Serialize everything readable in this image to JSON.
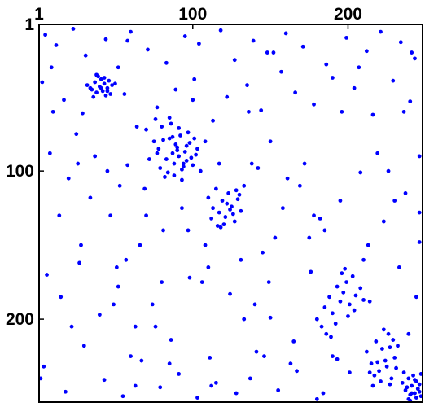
{
  "chart_data": {
    "type": "scatter",
    "color": "#0000ff",
    "xlim": [
      1,
      248
    ],
    "ylim": [
      1,
      256
    ],
    "y_reversed": true,
    "x_axis_position": "top",
    "xticks": [
      1,
      100,
      200
    ],
    "yticks": [
      1,
      100,
      200
    ],
    "x": [
      5,
      12,
      23,
      31,
      44,
      52,
      60,
      71,
      83,
      95,
      104,
      118,
      127,
      139,
      148,
      160,
      171,
      186,
      199,
      212,
      221,
      234,
      243,
      3,
      17,
      29,
      38,
      56,
      64,
      77,
      89,
      101,
      113,
      122,
      135,
      144,
      157,
      166,
      178,
      190,
      204,
      216,
      229,
      240,
      8,
      20,
      34,
      47,
      58,
      69,
      81,
      93,
      108,
      116,
      131,
      142,
      153,
      169,
      182,
      195,
      208,
      223,
      237,
      246,
      6,
      15,
      27,
      40,
      52,
      63,
      74,
      86,
      98,
      111,
      124,
      137,
      150,
      163,
      176,
      189,
      201,
      214,
      227,
      239,
      4,
      18,
      30,
      43,
      55,
      67,
      79,
      91,
      103,
      115,
      128,
      141,
      155,
      167,
      180,
      193,
      32,
      35,
      37,
      38,
      40,
      41,
      42,
      43,
      44,
      45,
      46,
      47,
      48,
      36,
      39,
      41,
      43,
      45,
      34,
      50,
      70,
      75,
      78,
      80,
      83,
      85,
      87,
      88,
      90,
      91,
      92,
      93,
      95,
      96,
      98,
      100,
      102,
      105,
      82,
      86,
      72,
      77,
      84,
      89,
      94,
      97,
      99,
      103,
      81,
      88,
      91,
      94,
      85,
      79,
      93,
      76,
      101,
      87,
      96,
      90,
      110,
      113,
      115,
      117,
      119,
      121,
      123,
      125,
      127,
      129,
      131,
      133,
      118,
      122,
      126,
      130,
      112,
      128,
      124,
      120,
      180,
      185,
      188,
      190,
      193,
      195,
      197,
      199,
      201,
      203,
      205,
      208,
      192,
      196,
      186,
      200,
      210,
      183,
      198,
      204,
      212,
      215,
      218,
      220,
      222,
      224,
      226,
      228,
      230,
      232,
      217,
      221,
      225,
      229,
      214,
      227,
      219,
      231,
      223,
      216,
      235,
      237,
      239,
      240,
      241,
      242,
      243,
      244,
      245,
      246,
      247,
      236,
      238,
      244,
      240,
      246,
      243,
      239,
      247,
      241,
      10,
      25,
      37,
      53,
      66,
      80,
      97,
      110,
      136,
      150,
      172,
      185,
      233,
      246,
      14,
      60,
      140,
      158,
      175,
      210,
      22,
      49,
      63,
      85,
      108,
      133,
      146,
      161,
      178,
      207,
      230,
      244,
      2,
      28,
      57,
      117,
      152,
      196,
      219,
      236,
      9,
      45,
      58,
      76,
      100,
      112,
      138,
      149,
      165,
      184,
      226,
      241,
      26,
      51,
      70,
      106,
      145,
      190,
      213,
      246
    ],
    "values": [
      8,
      15,
      4,
      22,
      11,
      30,
      6,
      18,
      27,
      9,
      14,
      5,
      25,
      12,
      20,
      7,
      16,
      28,
      10,
      19,
      6,
      13,
      24,
      40,
      52,
      61,
      35,
      48,
      70,
      57,
      45,
      38,
      66,
      50,
      42,
      59,
      33,
      47,
      55,
      37,
      44,
      62,
      39,
      53,
      88,
      105,
      118,
      130,
      96,
      112,
      140,
      125,
      150,
      137,
      160,
      98,
      145,
      110,
      132,
      120,
      101,
      134,
      115,
      148,
      170,
      185,
      162,
      197,
      178,
      205,
      190,
      214,
      172,
      226,
      183,
      240,
      199,
      230,
      168,
      212,
      236,
      188,
      244,
      210,
      232,
      249,
      218,
      241,
      252,
      228,
      246,
      237,
      253,
      243,
      250,
      222,
      248,
      235,
      254,
      227,
      42,
      45,
      40,
      47,
      43,
      38,
      46,
      41,
      49,
      44,
      39,
      48,
      42,
      50,
      36,
      44,
      37,
      46,
      44,
      41,
      72,
      80,
      85,
      70,
      92,
      78,
      88,
      95,
      84,
      90,
      76,
      99,
      87,
      93,
      81,
      96,
      89,
      100,
      104,
      68,
      92,
      88,
      101,
      82,
      95,
      74,
      91,
      85,
      79,
      103,
      71,
      97,
      64,
      98,
      106,
      65,
      78,
      77,
      83,
      86,
      118,
      125,
      112,
      128,
      120,
      131,
      115,
      124,
      134,
      119,
      127,
      110,
      138,
      122,
      129,
      116,
      132,
      113,
      126,
      136,
      200,
      192,
      185,
      196,
      178,
      188,
      182,
      175,
      190,
      171,
      184,
      179,
      203,
      169,
      210,
      198,
      187,
      205,
      166,
      194,
      222,
      230,
      215,
      235,
      220,
      228,
      210,
      240,
      226,
      218,
      238,
      242,
      232,
      214,
      236,
      219,
      229,
      233,
      207,
      245,
      243,
      248,
      240,
      251,
      245,
      238,
      250,
      242,
      247,
      244,
      252,
      236,
      246,
      253,
      255,
      249,
      241,
      254,
      237,
      250,
      60,
      75,
      90,
      110,
      150,
      175,
      140,
      165,
      60,
      80,
      95,
      140,
      165,
      90,
      130,
      225,
      190,
      125,
      145,
      160,
      205,
      190,
      245,
      230,
      80,
      200,
      225,
      105,
      130,
      30,
      120,
      185,
      240,
      150,
      160,
      95,
      20,
      60,
      88,
      60,
      30,
      100,
      12,
      205,
      52,
      245,
      95,
      175,
      215,
      250,
      100,
      20,
      95,
      165,
      130,
      175,
      155,
      225,
      150,
      128
    ]
  }
}
